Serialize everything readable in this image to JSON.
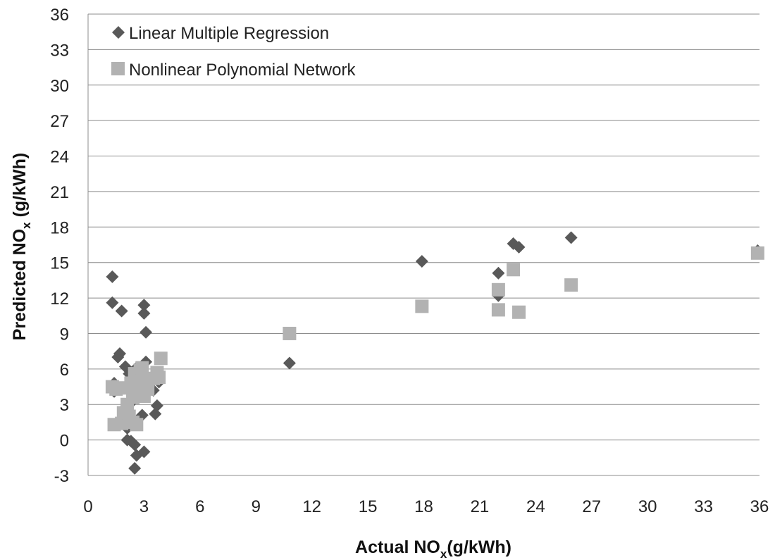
{
  "chart_data": {
    "type": "scatter",
    "title": "",
    "xlabel": {
      "main": "Actual NO",
      "sub": "x",
      "tail": "(g/kWh)"
    },
    "ylabel": {
      "main": "Predicted NO",
      "sub": "x",
      "tail": " (g/kWh)"
    },
    "xlim": [
      0,
      36
    ],
    "ylim": [
      -3,
      36
    ],
    "x_ticks": [
      "0",
      "3",
      "6",
      "9",
      "12",
      "15",
      "18",
      "21",
      "24",
      "27",
      "30",
      "33",
      "36"
    ],
    "y_ticks": [
      "-3",
      "0",
      "3",
      "6",
      "9",
      "12",
      "15",
      "18",
      "21",
      "24",
      "27",
      "30",
      "33",
      "36"
    ],
    "grid": "horizontal",
    "legend_position": "top-left",
    "series": [
      {
        "name": "Linear Multiple Regression",
        "marker": "diamond",
        "color": "#595959",
        "points": [
          [
            1.3,
            13.8
          ],
          [
            1.3,
            11.6
          ],
          [
            1.8,
            10.9
          ],
          [
            3.0,
            11.4
          ],
          [
            3.0,
            10.7
          ],
          [
            3.1,
            9.1
          ],
          [
            1.6,
            7.0
          ],
          [
            1.7,
            7.3
          ],
          [
            2.0,
            6.2
          ],
          [
            3.1,
            6.6
          ],
          [
            2.6,
            6.1
          ],
          [
            2.2,
            5.6
          ],
          [
            1.4,
            4.8
          ],
          [
            1.4,
            4.1
          ],
          [
            1.8,
            4.4
          ],
          [
            2.3,
            4.6
          ],
          [
            2.7,
            5.0
          ],
          [
            3.3,
            5.2
          ],
          [
            3.8,
            4.9
          ],
          [
            3.5,
            4.2
          ],
          [
            2.8,
            3.8
          ],
          [
            2.4,
            3.3
          ],
          [
            1.9,
            2.6
          ],
          [
            2.9,
            2.1
          ],
          [
            3.7,
            2.9
          ],
          [
            3.6,
            2.2
          ],
          [
            2.1,
            1.0
          ],
          [
            2.6,
            1.6
          ],
          [
            2.1,
            0.0
          ],
          [
            2.3,
            -0.1
          ],
          [
            2.5,
            -0.4
          ],
          [
            2.6,
            -1.3
          ],
          [
            3.0,
            -1.0
          ],
          [
            2.5,
            -2.4
          ],
          [
            10.8,
            6.5
          ],
          [
            17.9,
            15.1
          ],
          [
            22.0,
            14.1
          ],
          [
            22.0,
            12.2
          ],
          [
            22.8,
            16.6
          ],
          [
            23.1,
            16.3
          ],
          [
            25.9,
            17.1
          ],
          [
            35.9,
            16.0
          ]
        ]
      },
      {
        "name": "Nonlinear Polynomial Network",
        "marker": "square",
        "color": "#b2b2b2",
        "points": [
          [
            1.3,
            4.5
          ],
          [
            1.5,
            4.3
          ],
          [
            1.4,
            1.3
          ],
          [
            1.8,
            1.4
          ],
          [
            1.9,
            2.3
          ],
          [
            2.0,
            4.4
          ],
          [
            2.1,
            3.0
          ],
          [
            2.3,
            4.8
          ],
          [
            2.2,
            2.0
          ],
          [
            2.5,
            5.6
          ],
          [
            2.4,
            3.6
          ],
          [
            2.6,
            4.2
          ],
          [
            2.6,
            1.3
          ],
          [
            2.4,
            1.5
          ],
          [
            2.8,
            5.9
          ],
          [
            2.9,
            6.1
          ],
          [
            2.9,
            4.6
          ],
          [
            3.0,
            3.7
          ],
          [
            3.2,
            4.3
          ],
          [
            3.2,
            5.0
          ],
          [
            3.5,
            5.2
          ],
          [
            3.7,
            5.7
          ],
          [
            3.8,
            5.3
          ],
          [
            3.9,
            6.9
          ],
          [
            10.8,
            9.0
          ],
          [
            17.9,
            11.3
          ],
          [
            22.0,
            12.7
          ],
          [
            22.0,
            11.0
          ],
          [
            22.8,
            14.4
          ],
          [
            23.1,
            10.8
          ],
          [
            25.9,
            13.1
          ],
          [
            35.9,
            15.8
          ]
        ]
      }
    ]
  }
}
